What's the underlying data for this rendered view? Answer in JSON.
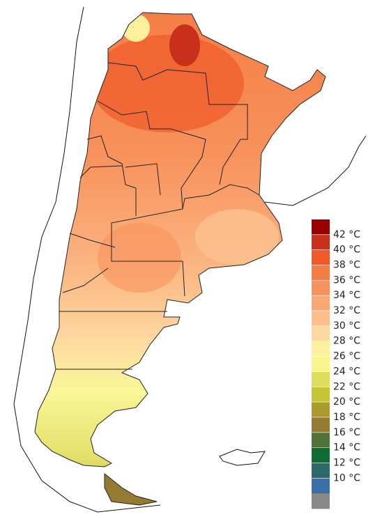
{
  "legend": {
    "labels": [
      "42 °C",
      "40 °C",
      "38 °C",
      "36 °C",
      "34 °C",
      "32 °C",
      "30 °C",
      "28 °C",
      "26 °C",
      "24 °C",
      "22 °C",
      "20 °C",
      "18 °C",
      "16 °C",
      "14 °C",
      "12 °C",
      "10 °C"
    ],
    "colors": [
      "#990000",
      "#c9301c",
      "#ef5a28",
      "#f47c45",
      "#f8925c",
      "#faa873",
      "#fcbf8c",
      "#fdd7a0",
      "#fdf09c",
      "#f8f78e",
      "#dedc5e",
      "#c5c436",
      "#aa9b2b",
      "#957a31",
      "#4e7537",
      "#0f6b35",
      "#2c6a6a",
      "#3a6ea8",
      "#888888"
    ]
  }
}
